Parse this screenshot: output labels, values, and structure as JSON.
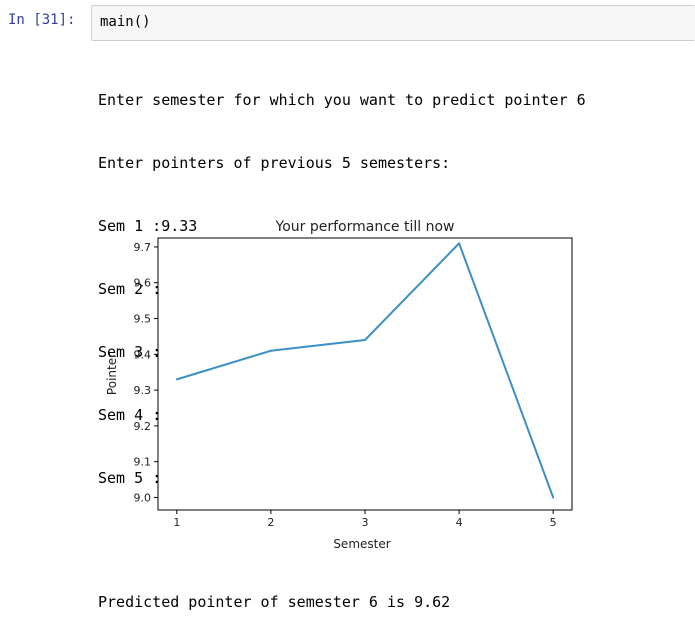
{
  "cell": {
    "prompt": "In [31]:",
    "code": "main()"
  },
  "output": {
    "lines": [
      "Enter semester for which you want to predict pointer 6",
      "Enter pointers of previous 5 semesters:",
      "Sem 1 :9.33",
      "Sem 2 :9.41",
      "Sem 3 :9.44",
      "Sem 4 :9.71",
      "Sem 5 :9.00"
    ],
    "result": "Predicted pointer of semester 6 is 9.62"
  },
  "chart_data": {
    "type": "line",
    "title": "Your performance till now",
    "xlabel": "Semester",
    "ylabel": "Pointer",
    "x": [
      1,
      2,
      3,
      4,
      5
    ],
    "series": [
      {
        "values": [
          9.33,
          9.41,
          9.44,
          9.71,
          9.0
        ],
        "color": "#3b8fc4"
      }
    ],
    "xticks": [
      "1",
      "2",
      "3",
      "4",
      "5"
    ],
    "yticks": [
      "9.0",
      "9.1",
      "9.2",
      "9.3",
      "9.4",
      "9.5",
      "9.6",
      "9.7"
    ],
    "xlim": [
      0.8,
      5.2
    ],
    "ylim": [
      8.965,
      9.725
    ],
    "grid": false
  }
}
